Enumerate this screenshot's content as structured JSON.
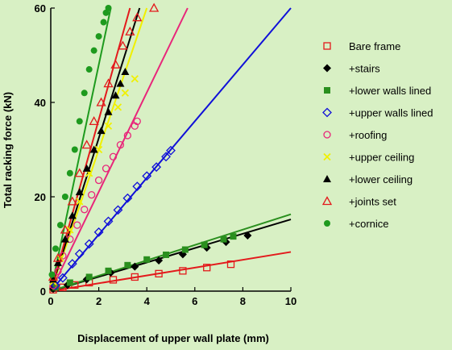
{
  "chart_data": {
    "type": "scatter",
    "title": "",
    "xlabel": "Displacement of upper wall plate (mm)",
    "ylabel": "Total racking force (kN)",
    "xlim": [
      0,
      10
    ],
    "ylim": [
      0,
      60
    ],
    "xticks": [
      0,
      2,
      4,
      6,
      8,
      10
    ],
    "yticks": [
      0,
      20,
      40,
      60
    ],
    "grid": false,
    "legend_position": "right",
    "background": "#d8f0c4",
    "series": [
      {
        "name": "Bare frame",
        "color": "#e31a1c",
        "marker": "open-square",
        "points": [
          [
            0.1,
            0.3
          ],
          [
            0.5,
            0.8
          ],
          [
            1.0,
            1.3
          ],
          [
            1.6,
            1.8
          ],
          [
            2.6,
            2.4
          ],
          [
            3.5,
            3.0
          ],
          [
            4.5,
            3.7
          ],
          [
            5.5,
            4.3
          ],
          [
            6.5,
            5.0
          ],
          [
            7.5,
            5.7
          ]
        ],
        "trend": [
          [
            0,
            0
          ],
          [
            10,
            8.3
          ]
        ]
      },
      {
        "name": "+stairs",
        "color": "#000000",
        "marker": "filled-diamond",
        "points": [
          [
            0.1,
            0.5
          ],
          [
            0.7,
            1.3
          ],
          [
            1.5,
            2.5
          ],
          [
            2.5,
            3.9
          ],
          [
            3.5,
            5.2
          ],
          [
            4.5,
            6.5
          ],
          [
            5.5,
            7.8
          ],
          [
            6.5,
            9.2
          ],
          [
            7.3,
            10.4
          ],
          [
            8.2,
            11.8
          ]
        ],
        "trend": [
          [
            0,
            0
          ],
          [
            10,
            15.2
          ]
        ]
      },
      {
        "name": "+lower walls lined",
        "color": "#2a8f1e",
        "marker": "filled-square",
        "points": [
          [
            0.2,
            0.8
          ],
          [
            0.8,
            1.8
          ],
          [
            1.6,
            3.0
          ],
          [
            2.4,
            4.3
          ],
          [
            3.2,
            5.5
          ],
          [
            4.0,
            6.7
          ],
          [
            4.8,
            7.7
          ],
          [
            5.6,
            8.8
          ],
          [
            6.4,
            9.8
          ],
          [
            7.2,
            11.0
          ],
          [
            7.6,
            11.6
          ]
        ],
        "trend": [
          [
            0,
            0
          ],
          [
            10,
            16.3
          ]
        ]
      },
      {
        "name": "+upper walls lined",
        "color": "#1010d8",
        "marker": "open-diamond",
        "points": [
          [
            0.2,
            1.2
          ],
          [
            0.5,
            2.8
          ],
          [
            0.9,
            5.8
          ],
          [
            1.2,
            7.9
          ],
          [
            1.6,
            10.0
          ],
          [
            2.0,
            12.5
          ],
          [
            2.4,
            14.8
          ],
          [
            2.8,
            17.2
          ],
          [
            3.2,
            19.7
          ],
          [
            3.6,
            22.2
          ],
          [
            4.0,
            24.4
          ],
          [
            4.4,
            26.3
          ],
          [
            4.8,
            28.5
          ],
          [
            5.0,
            29.8
          ]
        ],
        "trend": [
          [
            0,
            0
          ],
          [
            10,
            60
          ]
        ]
      },
      {
        "name": "+roofing",
        "color": "#e8267a",
        "marker": "open-circle",
        "points": [
          [
            0.1,
            1.2
          ],
          [
            0.3,
            4.2
          ],
          [
            0.5,
            7.5
          ],
          [
            0.8,
            11.0
          ],
          [
            1.1,
            14.0
          ],
          [
            1.4,
            17.3
          ],
          [
            1.7,
            20.4
          ],
          [
            2.0,
            23.5
          ],
          [
            2.3,
            26.0
          ],
          [
            2.6,
            28.5
          ],
          [
            2.9,
            31.0
          ],
          [
            3.2,
            33.0
          ],
          [
            3.5,
            35.0
          ],
          [
            3.6,
            36.0
          ]
        ],
        "trend": [
          [
            0,
            0
          ],
          [
            5.7,
            60
          ]
        ]
      },
      {
        "name": "+upper ceiling",
        "color": "#f0f000",
        "marker": "cross",
        "points": [
          [
            0.1,
            2.0
          ],
          [
            0.4,
            7.0
          ],
          [
            0.8,
            13.0
          ],
          [
            1.2,
            19.0
          ],
          [
            1.6,
            25.0
          ],
          [
            2.0,
            30.0
          ],
          [
            2.4,
            35.0
          ],
          [
            2.8,
            39.0
          ],
          [
            3.1,
            42.0
          ],
          [
            3.5,
            45.0
          ]
        ],
        "trend": [
          [
            0,
            0
          ],
          [
            4.0,
            60
          ]
        ]
      },
      {
        "name": "+lower ceiling",
        "color": "#000000",
        "marker": "filled-triangle",
        "points": [
          [
            0.1,
            2.5
          ],
          [
            0.3,
            6.0
          ],
          [
            0.6,
            11.0
          ],
          [
            0.9,
            16.0
          ],
          [
            1.2,
            21.0
          ],
          [
            1.5,
            26.0
          ],
          [
            1.8,
            30.0
          ],
          [
            2.1,
            34.0
          ],
          [
            2.4,
            38.0
          ],
          [
            2.7,
            41.5
          ],
          [
            2.9,
            44.0
          ],
          [
            3.1,
            46.5
          ]
        ],
        "trend": [
          [
            0,
            0
          ],
          [
            3.7,
            60
          ]
        ]
      },
      {
        "name": "+joints set",
        "color": "#e31a1c",
        "marker": "open-triangle",
        "points": [
          [
            0.1,
            3.0
          ],
          [
            0.3,
            7.0
          ],
          [
            0.6,
            13.0
          ],
          [
            0.9,
            19.0
          ],
          [
            1.2,
            25.0
          ],
          [
            1.5,
            31.0
          ],
          [
            1.8,
            36.0
          ],
          [
            2.1,
            40.0
          ],
          [
            2.4,
            44.0
          ],
          [
            2.7,
            48.0
          ],
          [
            3.0,
            52.0
          ],
          [
            3.3,
            55.0
          ],
          [
            3.6,
            58.0
          ],
          [
            4.3,
            60.0
          ]
        ],
        "trend": [
          [
            0,
            0
          ],
          [
            3.3,
            60
          ]
        ]
      },
      {
        "name": "+cornice",
        "color": "#1e9a1e",
        "marker": "filled-circle",
        "points": [
          [
            0.05,
            3.5
          ],
          [
            0.2,
            9.0
          ],
          [
            0.4,
            14.0
          ],
          [
            0.6,
            20.0
          ],
          [
            0.8,
            25.0
          ],
          [
            1.0,
            30.0
          ],
          [
            1.2,
            36.0
          ],
          [
            1.4,
            42.0
          ],
          [
            1.6,
            47.0
          ],
          [
            1.8,
            51.0
          ],
          [
            2.0,
            54.0
          ],
          [
            2.2,
            57.0
          ],
          [
            2.3,
            59.0
          ],
          [
            2.4,
            60.0
          ]
        ],
        "trend": [
          [
            0,
            0
          ],
          [
            2.5,
            60
          ]
        ]
      }
    ]
  }
}
